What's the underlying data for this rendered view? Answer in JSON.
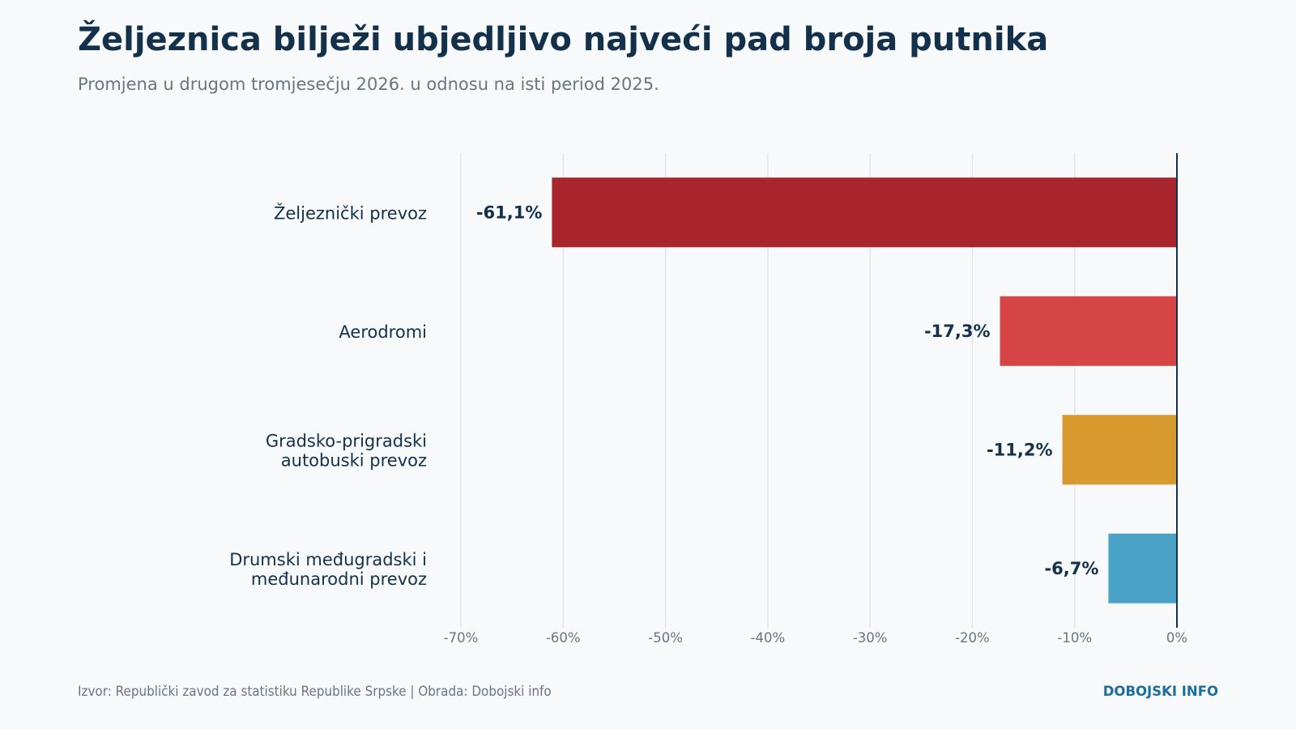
{
  "header": {
    "title": "Željeznica bilježi ubjedljivo najveći pad broja putnika",
    "subtitle": "Promjena u drugom tromjesečju 2026. u odnosu na isti period 2025."
  },
  "footer": {
    "source": "Izvor: Republički zavod za statistiku Republike Srpske | Obrada: Dobojski info",
    "brand": "DOBOJSKI INFO"
  },
  "chart_data": {
    "type": "bar",
    "orientation": "horizontal",
    "categories": [
      [
        "Željeznički prevoz"
      ],
      [
        "Aerodromi"
      ],
      [
        "Gradsko-prigradski",
        "autobuski prevoz"
      ],
      [
        "Drumski međugradski i",
        "međunarodni prevoz"
      ]
    ],
    "values": [
      -61.1,
      -17.3,
      -11.2,
      -6.7
    ],
    "value_labels": [
      "-61,1%",
      "-17,3%",
      "-11,2%",
      "-6,7%"
    ],
    "colors": [
      "#a8252d",
      "#d54545",
      "#d8992f",
      "#4aa3c7"
    ],
    "xlim": [
      -70,
      0
    ],
    "xticks": [
      -70,
      -60,
      -50,
      -40,
      -30,
      -20,
      -10,
      0
    ],
    "xtick_labels": [
      "-70%",
      "-60%",
      "-50%",
      "-40%",
      "-30%",
      "-20%",
      "-10%",
      "0%"
    ],
    "grid": true
  }
}
